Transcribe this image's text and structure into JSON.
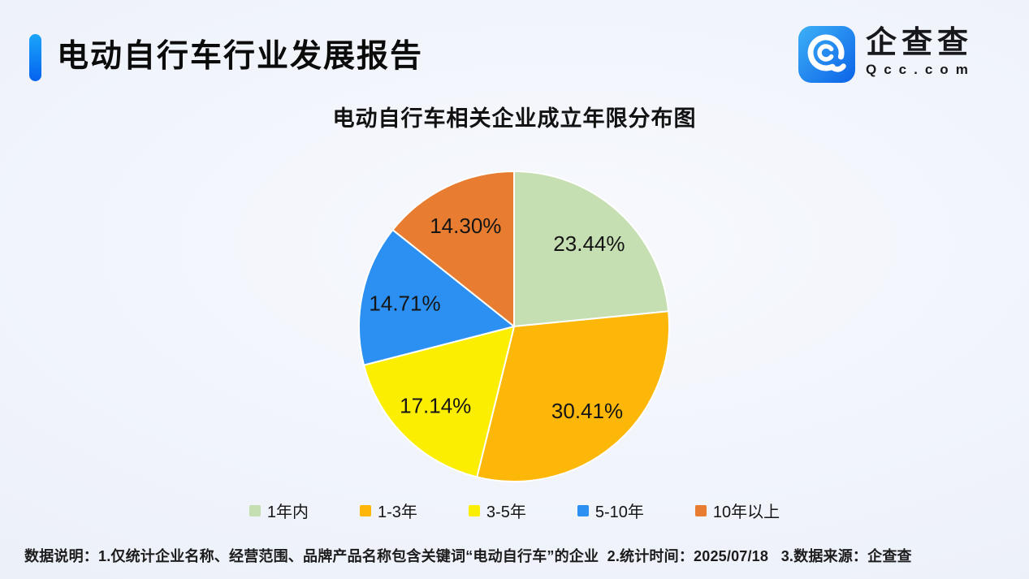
{
  "header": {
    "title": "电动自行车行业发展报告",
    "accent_color_top": "#1ba5fa",
    "accent_color_bottom": "#0463ef",
    "brand_name": "企查查",
    "brand_domain": "Qcc.com"
  },
  "chart_data": {
    "type": "pie",
    "title": "电动自行车相关企业成立年限分布图",
    "categories": [
      "1年内",
      "1-3年",
      "3-5年",
      "5-10年",
      "10年以上"
    ],
    "values": [
      23.44,
      30.41,
      17.14,
      14.71,
      14.3
    ],
    "labels": [
      "23.44%",
      "30.41%",
      "17.14%",
      "14.71%",
      "14.30%"
    ],
    "colors": [
      "#c5deb2",
      "#fcb708",
      "#fcee00",
      "#2b90f2",
      "#e87d31"
    ],
    "start_angle": "top",
    "direction": "clockwise",
    "legend_position": "bottom"
  },
  "footer": {
    "note": "数据说明：1.仅统计企业名称、经营范围、品牌产品名称包含关键词“电动自行车”的企业  2.统计时间：2025/07/18   3.数据来源：企查查"
  }
}
